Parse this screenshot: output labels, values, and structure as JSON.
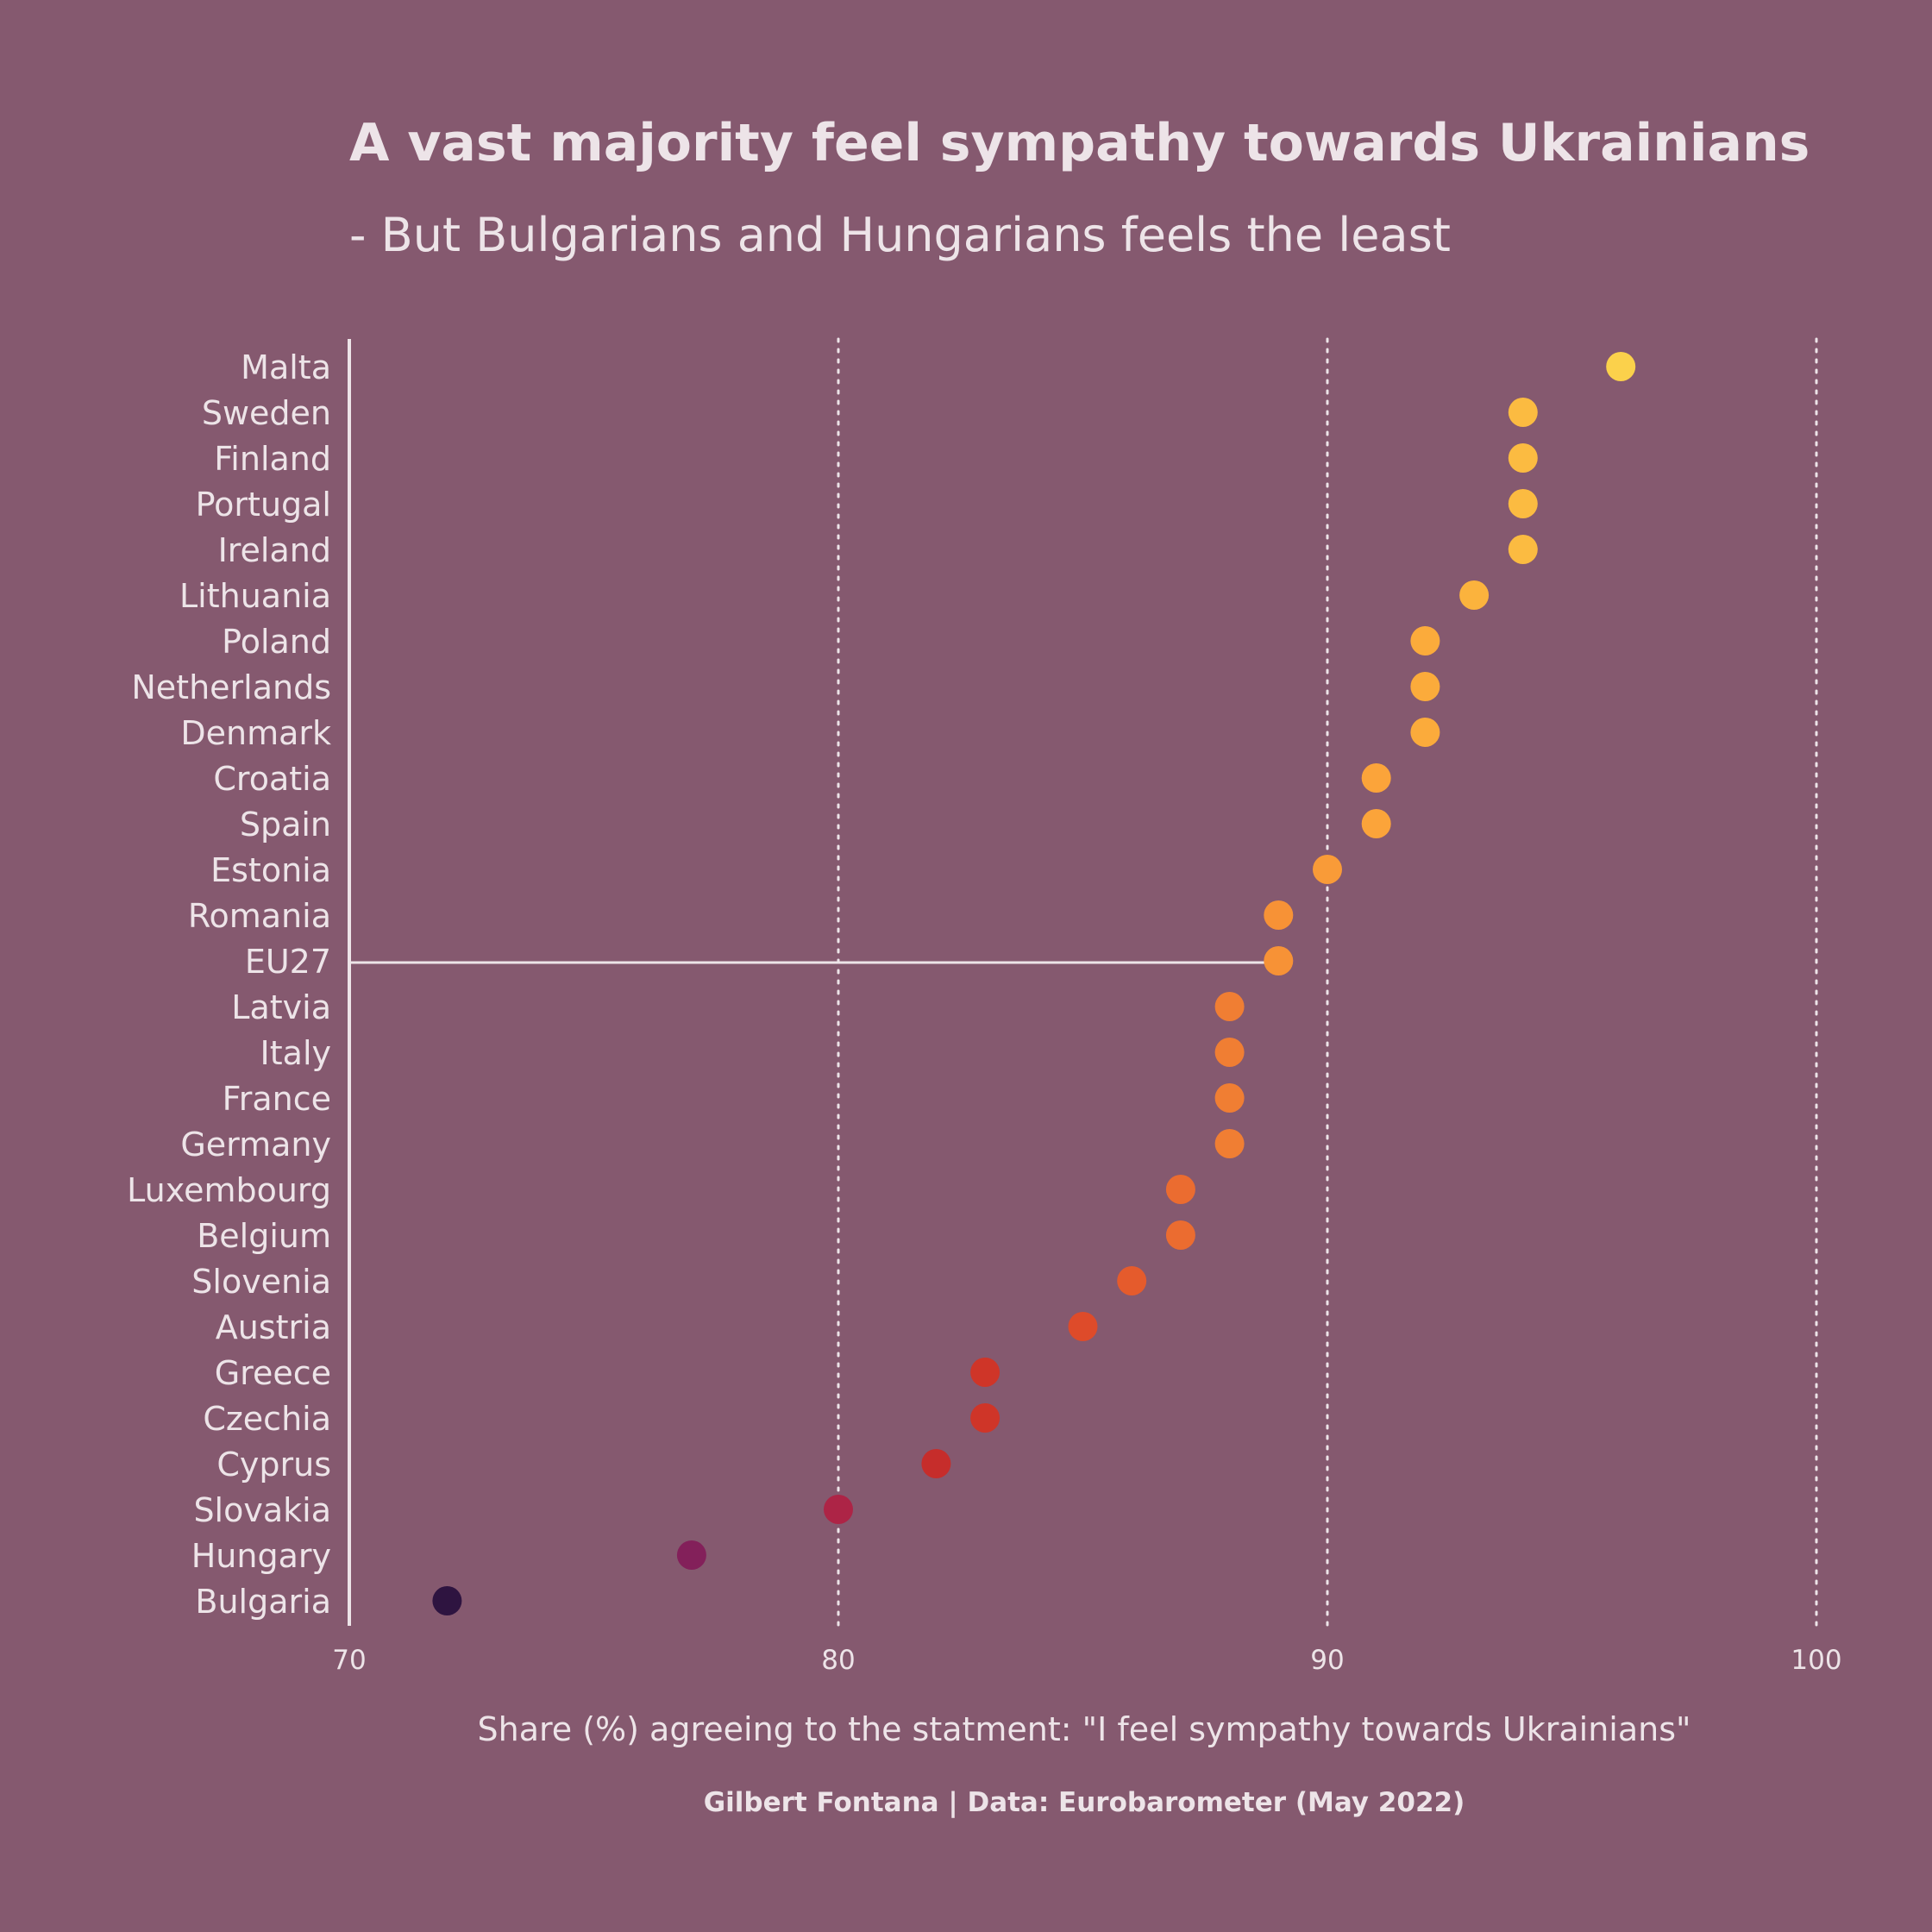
{
  "chart_data": {
    "type": "scatter",
    "title": "A vast majority feel sympathy towards Ukrainians",
    "subtitle": "- But Bulgarians and Hungarians feels the least",
    "xlabel": "Share (%) agreeing to the statment: \"I feel sympathy towards Ukrainians\"",
    "caption": "Gilbert Fontana | Data: Eurobarometer (May 2022)",
    "xlim": [
      70,
      100
    ],
    "xticks": [
      70,
      80,
      90,
      100
    ],
    "grid": "vertical dotted at 80, 90, 100",
    "highlight": "EU27",
    "highlight_color": "#F08A3A",
    "background_color": "#85596F",
    "text_color": "#EDE4E8",
    "points": [
      {
        "country": "Malta",
        "value": 96,
        "color": "#FBD14B"
      },
      {
        "country": "Sweden",
        "value": 94,
        "color": "#FBBB41"
      },
      {
        "country": "Finland",
        "value": 94,
        "color": "#FBBB41"
      },
      {
        "country": "Portugal",
        "value": 94,
        "color": "#FBBB41"
      },
      {
        "country": "Ireland",
        "value": 94,
        "color": "#FBBB41"
      },
      {
        "country": "Lithuania",
        "value": 93,
        "color": "#FBB33D"
      },
      {
        "country": "Poland",
        "value": 92,
        "color": "#FBAB3B"
      },
      {
        "country": "Netherlands",
        "value": 92,
        "color": "#FBAB3B"
      },
      {
        "country": "Denmark",
        "value": 92,
        "color": "#FBAB3B"
      },
      {
        "country": "Croatia",
        "value": 91,
        "color": "#FBA43A"
      },
      {
        "country": "Spain",
        "value": 91,
        "color": "#FBA43A"
      },
      {
        "country": "Estonia",
        "value": 90,
        "color": "#F99B38"
      },
      {
        "country": "Romania",
        "value": 89,
        "color": "#F79236"
      },
      {
        "country": "EU27",
        "value": 89,
        "color": "#F79236"
      },
      {
        "country": "Latvia",
        "value": 88,
        "color": "#F07E33"
      },
      {
        "country": "Italy",
        "value": 88,
        "color": "#F07E33"
      },
      {
        "country": "France",
        "value": 88,
        "color": "#F07E33"
      },
      {
        "country": "Germany",
        "value": 88,
        "color": "#F07E33"
      },
      {
        "country": "Luxembourg",
        "value": 87,
        "color": "#EB6C30"
      },
      {
        "country": "Belgium",
        "value": 87,
        "color": "#EB6C30"
      },
      {
        "country": "Slovenia",
        "value": 86,
        "color": "#E55B2C"
      },
      {
        "country": "Austria",
        "value": 85,
        "color": "#DE4B2A"
      },
      {
        "country": "Greece",
        "value": 83,
        "color": "#CF3528"
      },
      {
        "country": "Czechia",
        "value": 83,
        "color": "#CF3528"
      },
      {
        "country": "Cyprus",
        "value": 82,
        "color": "#C62D2B"
      },
      {
        "country": "Slovakia",
        "value": 80,
        "color": "#AD2446"
      },
      {
        "country": "Hungary",
        "value": 77,
        "color": "#83205A"
      },
      {
        "country": "Bulgaria",
        "value": 72,
        "color": "#2E1440"
      }
    ]
  }
}
